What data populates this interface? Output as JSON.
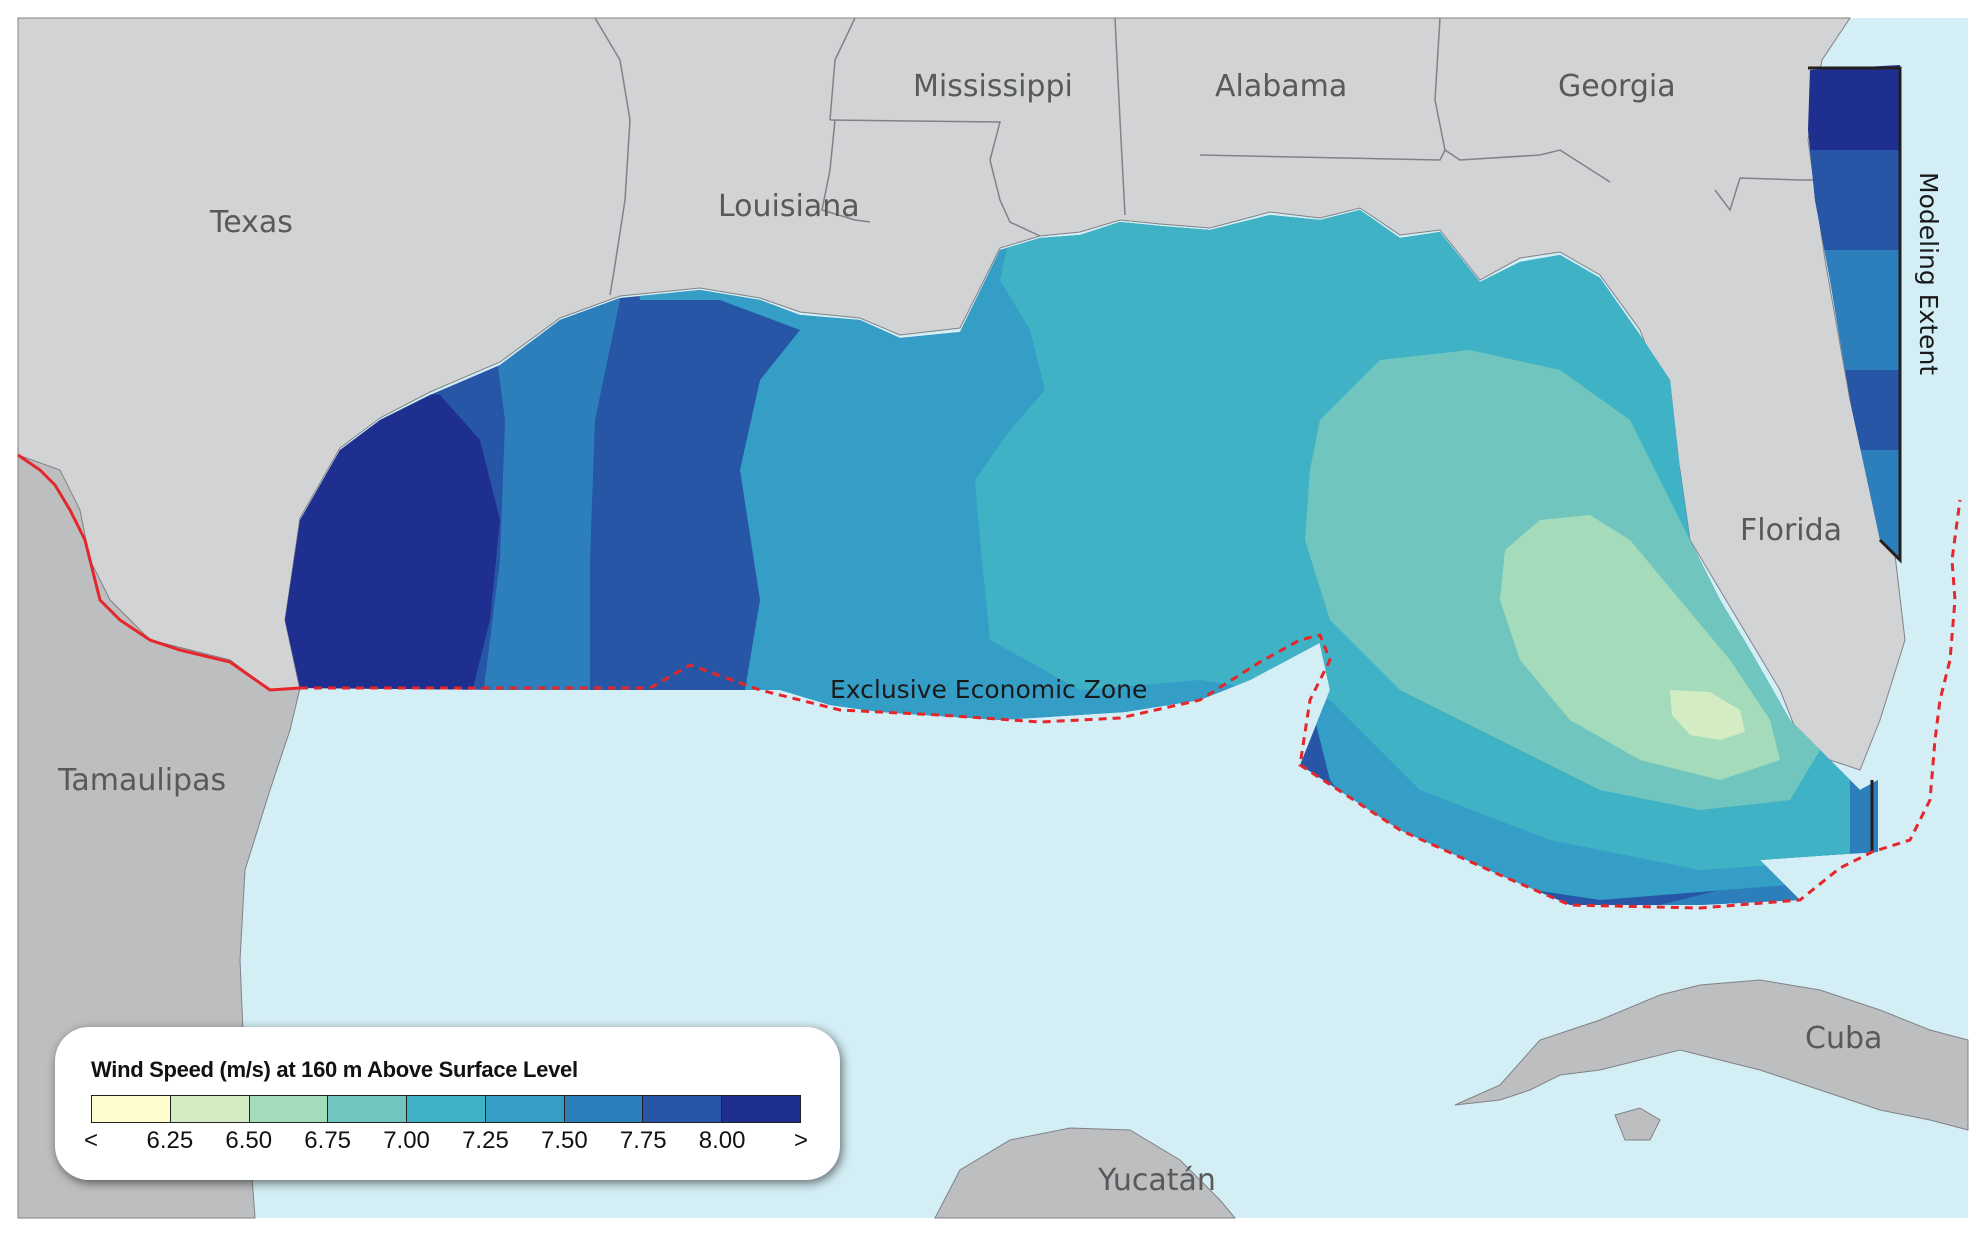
{
  "map": {
    "labels": {
      "texas": "Texas",
      "louisiana": "Louisiana",
      "mississippi": "Mississippi",
      "alabama": "Alabama",
      "georgia": "Georgia",
      "florida": "Florida",
      "tamaulipas": "Tamaulipas",
      "yucatan": "Yucatán",
      "cuba": "Cuba",
      "eez": "Exclusive Economic Zone",
      "modeling_extent": "Modeling Extent"
    },
    "colors": {
      "ocean": "#d3eef5",
      "land_us": "#d1d3d4",
      "land_other": "#bcbec0",
      "border": "#808285",
      "eez_line": "#e5262b",
      "extent_line": "#231f20"
    }
  },
  "legend": {
    "title": "Wind Speed (m/s) at 160 m Above Surface Level",
    "bins": [
      {
        "color": "#fdfdd0"
      },
      {
        "color": "#d3ecc3"
      },
      {
        "color": "#a4dbbb"
      },
      {
        "color": "#70c5bf"
      },
      {
        "color": "#3fb3c5"
      },
      {
        "color": "#349ec6"
      },
      {
        "color": "#2d7fbb"
      },
      {
        "color": "#2656a5"
      },
      {
        "color": "#1f2f8f"
      }
    ],
    "ticks": [
      "<",
      "6.25",
      "6.50",
      "6.75",
      "7.00",
      "7.25",
      "7.50",
      "7.75",
      "8.00",
      ">"
    ]
  }
}
